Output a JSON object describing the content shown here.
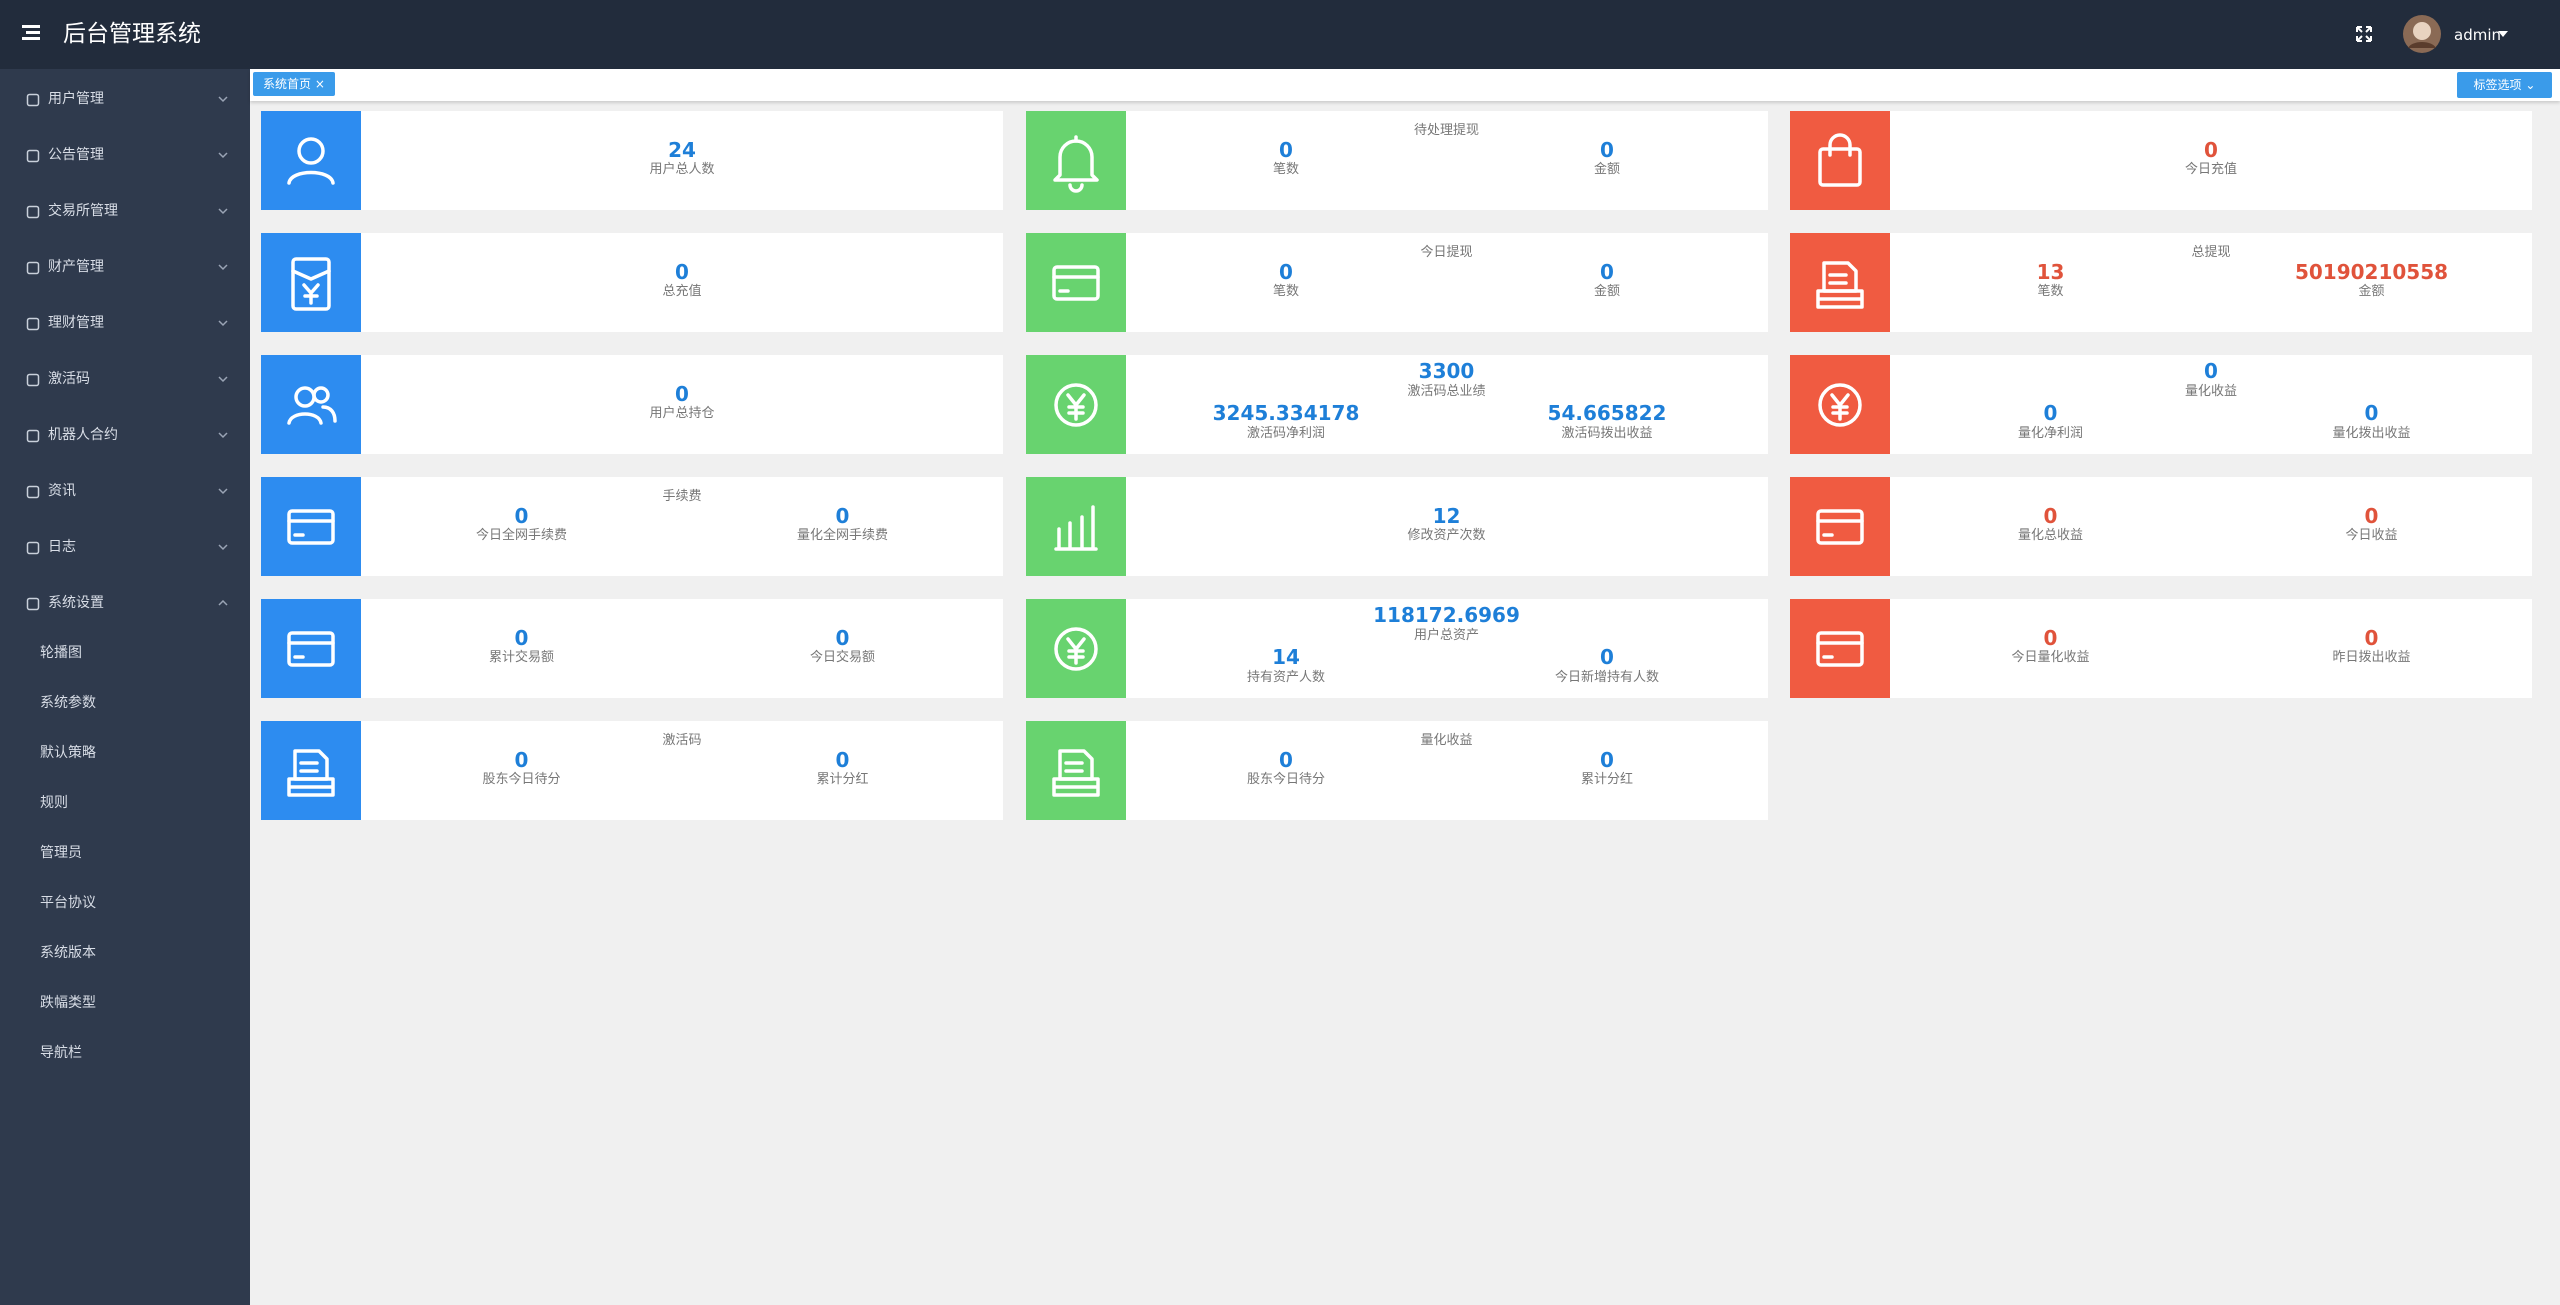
{
  "header": {
    "title": "后台管理系统",
    "user": "admin"
  },
  "sidebar": {
    "menu": [
      "用户管理",
      "公告管理",
      "交易所管理",
      "财产管理",
      "理财管理",
      "激活码",
      "机器人合约",
      "资讯",
      "日志",
      "系统设置"
    ],
    "submenu": [
      "轮播图",
      "系统参数",
      "默认策略",
      "规则",
      "管理员",
      "平台协议",
      "系统版本",
      "跌幅类型",
      "导航栏"
    ]
  },
  "tabs": {
    "active": "系统首页",
    "options": "标签选项"
  },
  "cards": [
    {
      "items": [
        {
          "value": 24,
          "label": "用户总人数"
        }
      ]
    },
    {
      "title": "待处理提现",
      "items": [
        {
          "value": 0,
          "label": "笔数"
        },
        {
          "value": 0,
          "label": "金额"
        }
      ]
    },
    {
      "items": [
        {
          "value": 0,
          "label": "今日充值"
        }
      ]
    },
    {
      "items": [
        {
          "value": 0,
          "label": "总充值"
        }
      ]
    },
    {
      "title": "今日提现",
      "items": [
        {
          "value": 0,
          "label": "笔数"
        },
        {
          "value": 0,
          "label": "金额"
        }
      ]
    },
    {
      "title": "总提现",
      "items": [
        {
          "value": 13,
          "label": "笔数"
        },
        {
          "value": 50190210558,
          "label": "金额"
        }
      ]
    },
    {
      "items": [
        {
          "value": 0,
          "label": "用户总持仓"
        }
      ]
    },
    {
      "top": {
        "value": 3300,
        "label": "激活码总业绩"
      },
      "items": [
        {
          "value": 3245.334178,
          "label": "激活码净利润"
        },
        {
          "value": 54.665822,
          "label": "激活码拨出收益"
        }
      ]
    },
    {
      "top": {
        "value": 0,
        "label": "量化收益"
      },
      "items": [
        {
          "value": 0,
          "label": "量化净利润"
        },
        {
          "value": 0,
          "label": "量化拨出收益"
        }
      ]
    },
    {
      "title": "手续费",
      "items": [
        {
          "value": 0,
          "label": "今日全网手续费"
        },
        {
          "value": 0,
          "label": "量化全网手续费"
        }
      ]
    },
    {
      "items": [
        {
          "value": 12,
          "label": "修改资产次数"
        }
      ]
    },
    {
      "items": [
        {
          "value": 0,
          "label": "量化总收益"
        },
        {
          "value": 0,
          "label": "今日收益"
        }
      ]
    },
    {
      "items": [
        {
          "value": 0,
          "label": "累计交易额"
        },
        {
          "value": 0,
          "label": "今日交易额"
        }
      ]
    },
    {
      "top": {
        "value": 118172.6969,
        "label": "用户总资产"
      },
      "items": [
        {
          "value": 14,
          "label": "持有资产人数"
        },
        {
          "value": 0,
          "label": "今日新增持有人数"
        }
      ]
    },
    {
      "items": [
        {
          "value": 0,
          "label": "今日量化收益"
        },
        {
          "value": 0,
          "label": "昨日拨出收益"
        }
      ]
    },
    {
      "title": "激活码",
      "items": [
        {
          "value": 0,
          "label": "股东今日待分"
        },
        {
          "value": 0,
          "label": "累计分红"
        }
      ]
    },
    {
      "title": "量化收益",
      "items": [
        {
          "value": 0,
          "label": "股东今日待分"
        },
        {
          "value": 0,
          "label": "累计分红"
        }
      ]
    }
  ]
}
